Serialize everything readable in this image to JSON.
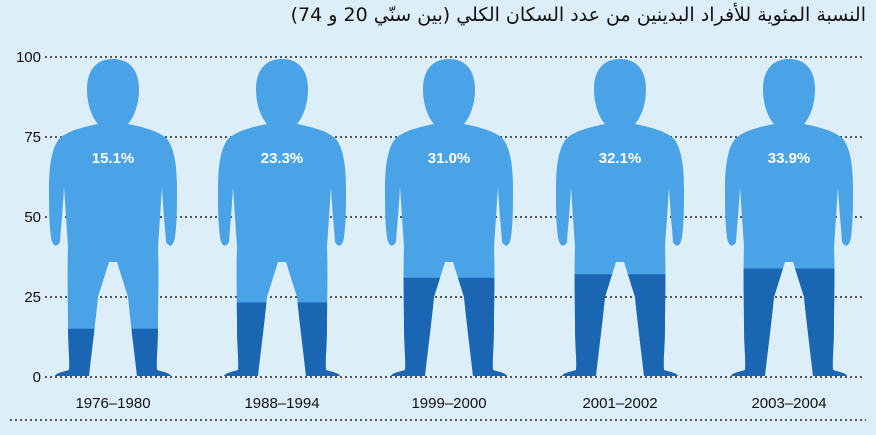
{
  "chart_data": {
    "type": "bar",
    "title": "النسبة المئوية للأفراد البدينين من عدد السكان الكلي (بين سنّي 20 و 74)",
    "categories": [
      "1976–1980",
      "1988–1994",
      "1999–2000",
      "2001–2002",
      "2003–2004"
    ],
    "values": [
      15.1,
      23.3,
      31.0,
      32.1,
      33.9
    ],
    "value_labels": [
      "15.1%",
      "23.3%",
      "31.0%",
      "32.1%",
      "33.9%"
    ],
    "ylim": [
      0,
      100
    ],
    "yticks": [
      0,
      25,
      50,
      75,
      100
    ],
    "grid": true,
    "xlabel": "",
    "ylabel": "",
    "legend": "none",
    "colors": {
      "background": "#dceef8",
      "figure": "#4aa3e6",
      "fill": "#1a66b3",
      "grid": "#222222"
    }
  }
}
